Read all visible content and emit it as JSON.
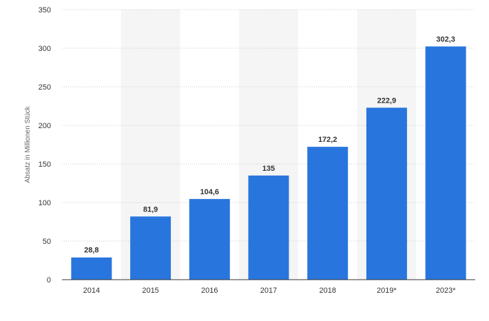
{
  "chart_data": {
    "type": "bar",
    "categories": [
      "2014",
      "2015",
      "2016",
      "2017",
      "2018",
      "2019*",
      "2023*"
    ],
    "values": [
      28.8,
      81.9,
      104.6,
      135,
      172.2,
      222.9,
      302.3
    ],
    "value_labels": [
      "28,8",
      "81,9",
      "104,6",
      "135",
      "172,2",
      "222,9",
      "302,3"
    ],
    "ylabel": "Absatz in Millionen Stück",
    "ylim": [
      0,
      350
    ],
    "yticks": [
      0,
      50,
      100,
      150,
      200,
      250,
      300,
      350
    ],
    "grid": true,
    "bar_color": "#2876dd",
    "band_color": "#f5f5f5",
    "grid_color": "#c8c8c8"
  }
}
